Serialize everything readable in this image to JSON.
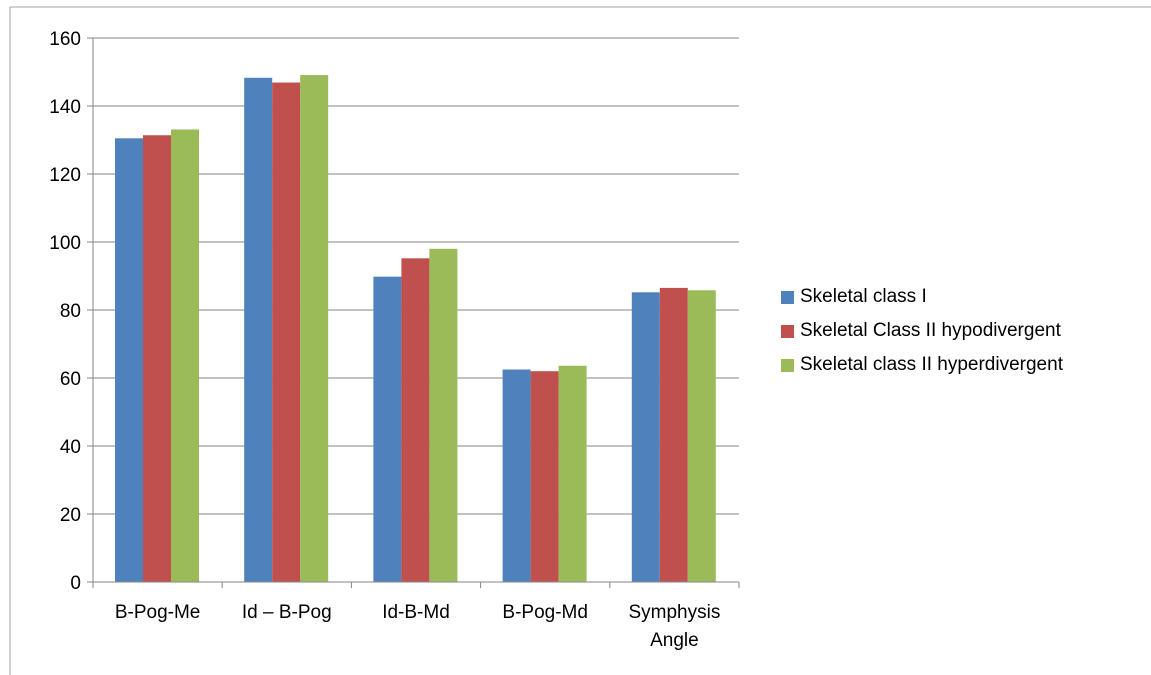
{
  "chart_data": {
    "type": "bar",
    "categories": [
      "B-Pog-Me",
      "Id – B-Pog",
      "Id-B-Md",
      "B-Pog-Md",
      "Symphysis Angle"
    ],
    "category_lines": [
      [
        "B-Pog-Me"
      ],
      [
        "Id – B-Pog"
      ],
      [
        "Id-B-Md"
      ],
      [
        "B-Pog-Md"
      ],
      [
        "Symphysis",
        "Angle"
      ]
    ],
    "series": [
      {
        "name": "Skeletal class I",
        "color": "#4F81BD",
        "values": [
          130.5,
          148.3,
          89.8,
          62.5,
          85.2
        ]
      },
      {
        "name": "Skeletal Class II hypodivergent",
        "color": "#C0504D",
        "values": [
          131.4,
          146.9,
          95.2,
          62.0,
          86.5
        ]
      },
      {
        "name": "Skeletal class II hyperdivergent",
        "color": "#9BBB59",
        "values": [
          133.1,
          149.1,
          98.0,
          63.6,
          85.8
        ]
      }
    ],
    "y_ticks": [
      "0",
      "20",
      "40",
      "60",
      "80",
      "100",
      "120",
      "140",
      "160"
    ],
    "ylim": [
      0,
      160
    ],
    "grid": true,
    "legend_position": "right"
  }
}
